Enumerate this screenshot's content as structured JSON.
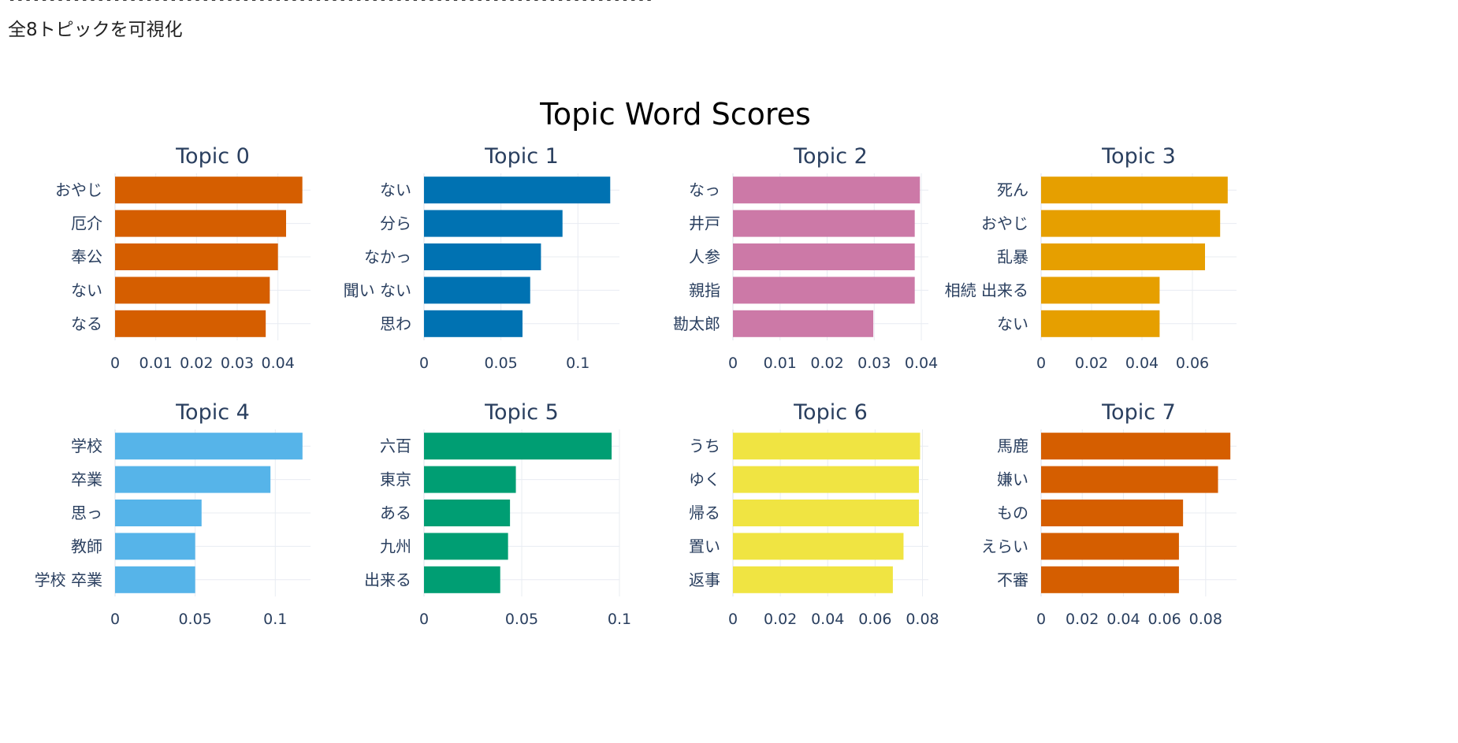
{
  "header": {
    "dashes": "--------------------------------------------------------------------------------",
    "caption": "全8トピックを可視化"
  },
  "chart_data": {
    "type": "bar",
    "orientation": "horizontal",
    "title": "Topic Word Scores",
    "grid": true,
    "subplots": [
      {
        "title": "Topic 0",
        "color": "#D55E00",
        "categories": [
          "おやじ",
          "厄介",
          "奉公",
          "ない",
          "なる"
        ],
        "values": [
          0.046,
          0.042,
          0.04,
          0.038,
          0.037
        ],
        "xlim": [
          0,
          0.048
        ],
        "ticks": [
          0,
          0.01,
          0.02,
          0.03,
          0.04
        ],
        "tick_labels": [
          "0",
          "0.01",
          "0.02",
          "0.03",
          "0.04"
        ]
      },
      {
        "title": "Topic 1",
        "color": "#0072B2",
        "categories": [
          "ない",
          "分ら",
          "なかっ",
          "聞い ない",
          "思わ"
        ],
        "values": [
          0.121,
          0.09,
          0.076,
          0.069,
          0.064
        ],
        "xlim": [
          0,
          0.127
        ],
        "ticks": [
          0,
          0.05,
          0.1
        ],
        "tick_labels": [
          "0",
          "0.05",
          "0.1"
        ]
      },
      {
        "title": "Topic 2",
        "color": "#CC79A7",
        "categories": [
          "なっ",
          "井戸",
          "人参",
          "親指",
          "勘太郎"
        ],
        "values": [
          0.0397,
          0.0386,
          0.0386,
          0.0386,
          0.0298
        ],
        "xlim": [
          0,
          0.0415
        ],
        "ticks": [
          0,
          0.01,
          0.02,
          0.03,
          0.04
        ],
        "tick_labels": [
          "0",
          "0.01",
          "0.02",
          "0.03",
          "0.04"
        ]
      },
      {
        "title": "Topic 3",
        "color": "#E69F00",
        "categories": [
          "死ん",
          "おやじ",
          "乱暴",
          "相続 出来る",
          "ない"
        ],
        "values": [
          0.074,
          0.071,
          0.065,
          0.047,
          0.047
        ],
        "xlim": [
          0,
          0.0775
        ],
        "ticks": [
          0,
          0.02,
          0.04,
          0.06
        ],
        "tick_labels": [
          "0",
          "0.02",
          "0.04",
          "0.06"
        ]
      },
      {
        "title": "Topic 4",
        "color": "#56B4E9",
        "categories": [
          "学校",
          "卒業",
          "思っ",
          "教師",
          "学校 卒業"
        ],
        "values": [
          0.117,
          0.097,
          0.054,
          0.05,
          0.05
        ],
        "xlim": [
          0,
          0.122
        ],
        "ticks": [
          0,
          0.05,
          0.1
        ],
        "tick_labels": [
          "0",
          "0.05",
          "0.1"
        ]
      },
      {
        "title": "Topic 5",
        "color": "#009E73",
        "categories": [
          "六百",
          "東京",
          "ある",
          "九州",
          "出来る"
        ],
        "values": [
          0.096,
          0.047,
          0.044,
          0.043,
          0.039
        ],
        "xlim": [
          0,
          0.1
        ],
        "ticks": [
          0,
          0.05,
          0.1
        ],
        "tick_labels": [
          "0",
          "0.05",
          "0.1"
        ]
      },
      {
        "title": "Topic 6",
        "color": "#F0E442",
        "categories": [
          "うち",
          "ゆく",
          "帰る",
          "置い",
          "返事"
        ],
        "values": [
          0.079,
          0.0785,
          0.0785,
          0.072,
          0.0675
        ],
        "xlim": [
          0,
          0.0825
        ],
        "ticks": [
          0,
          0.02,
          0.04,
          0.06,
          0.08
        ],
        "tick_labels": [
          "0",
          "0.02",
          "0.04",
          "0.06",
          "0.08"
        ]
      },
      {
        "title": "Topic 7",
        "color": "#D55E00",
        "categories": [
          "馬鹿",
          "嫌い",
          "もの",
          "えらい",
          "不審"
        ],
        "values": [
          0.092,
          0.086,
          0.069,
          0.067,
          0.067
        ],
        "xlim": [
          0,
          0.095
        ],
        "ticks": [
          0,
          0.02,
          0.04,
          0.06,
          0.08
        ],
        "tick_labels": [
          "0",
          "0.02",
          "0.04",
          "0.06",
          "0.08"
        ]
      }
    ]
  }
}
